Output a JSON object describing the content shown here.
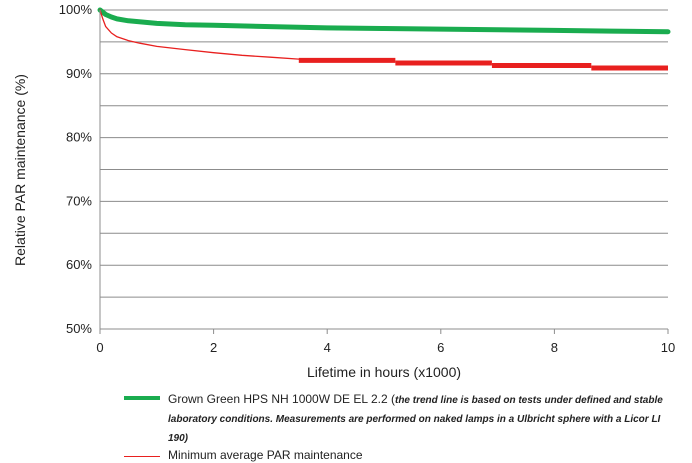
{
  "chart_data": {
    "type": "line",
    "title": "",
    "xlabel": "Lifetime in hours (x1000)",
    "ylabel": "Relative PAR maintenance (%)",
    "xlim": [
      0,
      10
    ],
    "ylim": [
      50,
      100
    ],
    "x_ticks": [
      "0",
      "2",
      "4",
      "6",
      "8",
      "10"
    ],
    "y_ticks": [
      "50%",
      "60%",
      "70%",
      "80%",
      "90%",
      "100%"
    ],
    "grid": "horizontal",
    "legend_position": "bottom",
    "series": [
      {
        "name": "Grown Green HPS NH 1000W DE EL 2.2",
        "color": "#1aac4f",
        "x": [
          0,
          0.1,
          0.2,
          0.3,
          0.5,
          1,
          1.5,
          2,
          3,
          4,
          5,
          6,
          7,
          8,
          9,
          10
        ],
        "y": [
          100,
          99.3,
          98.9,
          98.6,
          98.3,
          97.9,
          97.7,
          97.6,
          97.4,
          97.2,
          97.1,
          97.0,
          96.9,
          96.8,
          96.7,
          96.6
        ]
      },
      {
        "name": "Minimum average PAR maintenance",
        "color": "#e8201f",
        "x": [
          0,
          0.05,
          0.1,
          0.2,
          0.3,
          0.5,
          0.7,
          1,
          1.5,
          2,
          2.5,
          3,
          3.5
        ],
        "y": [
          100,
          98.6,
          97.4,
          96.4,
          95.8,
          95.2,
          94.8,
          94.3,
          93.8,
          93.3,
          92.9,
          92.6,
          92.3
        ]
      }
    ],
    "steps": [
      {
        "x_start": 3.5,
        "x_end": 5.2,
        "y": 92.1
      },
      {
        "x_start": 5.2,
        "x_end": 6.9,
        "y": 91.7
      },
      {
        "x_start": 6.9,
        "x_end": 8.65,
        "y": 91.3
      },
      {
        "x_start": 8.65,
        "x_end": 10,
        "y": 90.9
      }
    ]
  },
  "legend": {
    "green_label": "Grown Green HPS NH 1000W DE EL 2.2 (",
    "green_note": "the trend line is based on tests under defined and stable laboratory conditions. Measurements are performed on naked lamps in a Ulbricht sphere with a Licor LI 190)",
    "red_label": "Minimum average PAR maintenance"
  }
}
